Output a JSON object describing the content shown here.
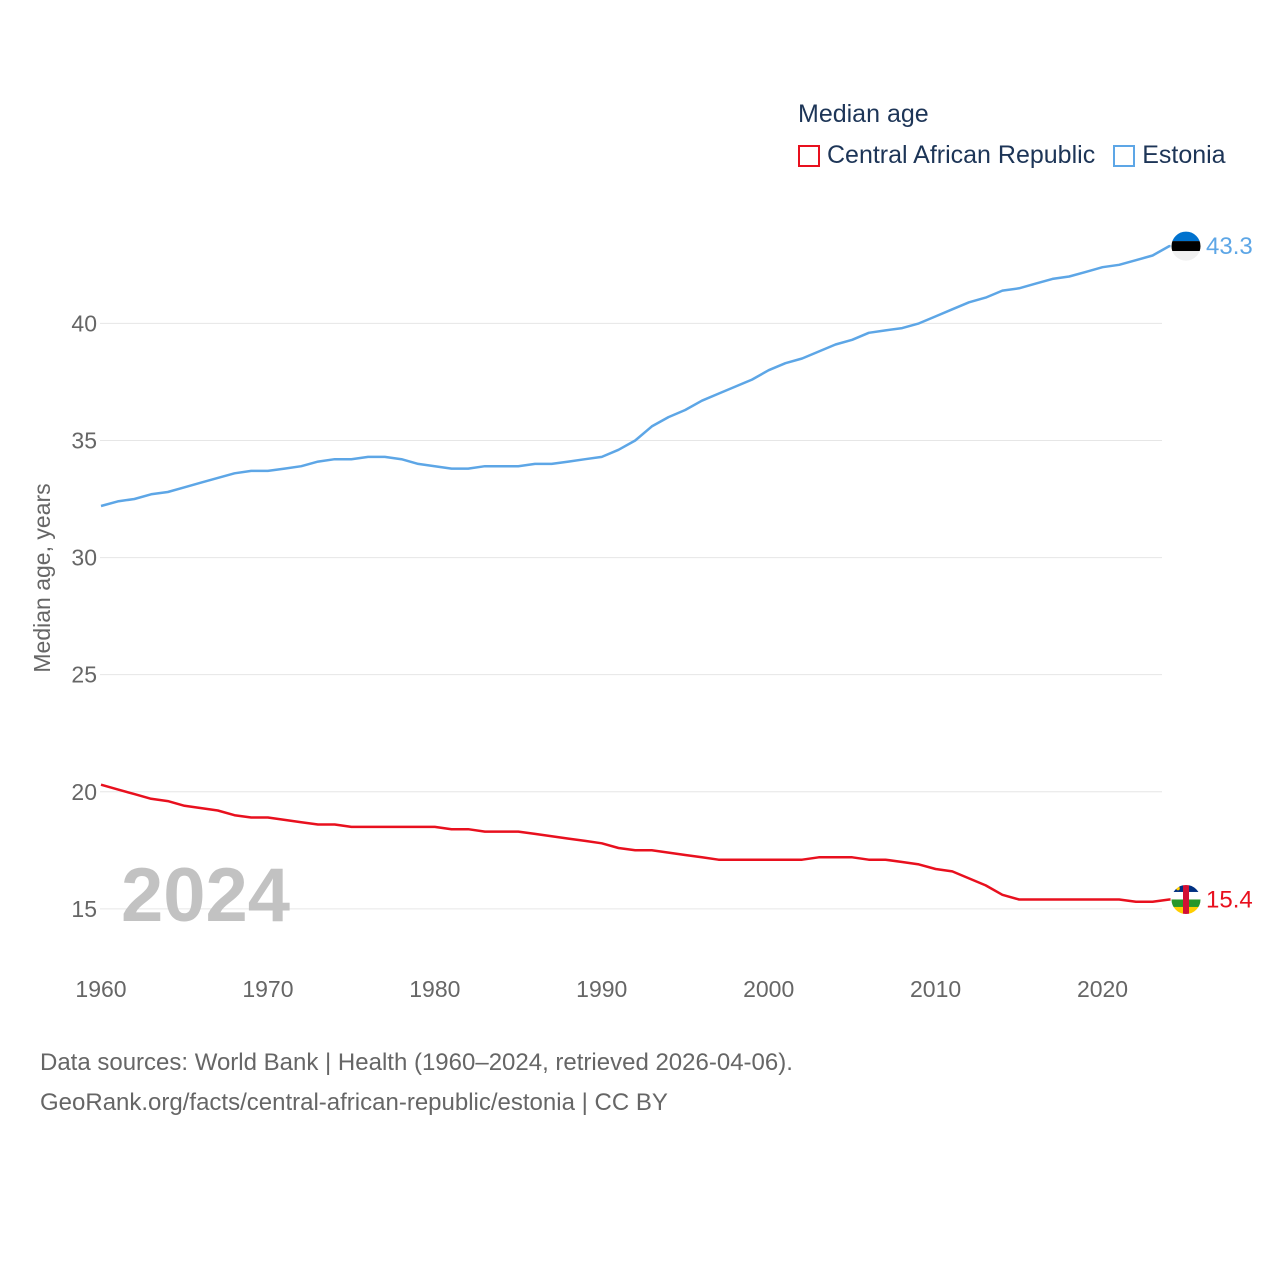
{
  "chart_data": {
    "type": "line",
    "title": "Median age",
    "xlabel": "",
    "ylabel": "Median age, years",
    "xlim": [
      1960,
      2025
    ],
    "ylim": [
      13.2,
      44.5
    ],
    "x_ticks": [
      1960,
      1970,
      1980,
      1990,
      2000,
      2010,
      2020
    ],
    "y_ticks": [
      15,
      20,
      25,
      30,
      35,
      40
    ],
    "grid": true,
    "legend_position": "top-right",
    "current_year_label": "2024",
    "x": [
      1960,
      1961,
      1962,
      1963,
      1964,
      1965,
      1966,
      1967,
      1968,
      1969,
      1970,
      1971,
      1972,
      1973,
      1974,
      1975,
      1976,
      1977,
      1978,
      1979,
      1980,
      1981,
      1982,
      1983,
      1984,
      1985,
      1986,
      1987,
      1988,
      1989,
      1990,
      1991,
      1992,
      1993,
      1994,
      1995,
      1996,
      1997,
      1998,
      1999,
      2000,
      2001,
      2002,
      2003,
      2004,
      2005,
      2006,
      2007,
      2008,
      2009,
      2010,
      2011,
      2012,
      2013,
      2014,
      2015,
      2016,
      2017,
      2018,
      2019,
      2020,
      2021,
      2022,
      2023,
      2024
    ],
    "series": [
      {
        "name": "Central African Republic",
        "color": "#e8101e",
        "end_label": "15.4",
        "flag": "central-african-republic-flag-icon",
        "values": [
          20.3,
          20.1,
          19.9,
          19.7,
          19.6,
          19.4,
          19.3,
          19.2,
          19.0,
          18.9,
          18.9,
          18.8,
          18.7,
          18.6,
          18.6,
          18.5,
          18.5,
          18.5,
          18.5,
          18.5,
          18.5,
          18.4,
          18.4,
          18.3,
          18.3,
          18.3,
          18.2,
          18.1,
          18.0,
          17.9,
          17.8,
          17.6,
          17.5,
          17.5,
          17.4,
          17.3,
          17.2,
          17.1,
          17.1,
          17.1,
          17.1,
          17.1,
          17.1,
          17.2,
          17.2,
          17.2,
          17.1,
          17.1,
          17.0,
          16.9,
          16.7,
          16.6,
          16.3,
          16.0,
          15.6,
          15.4,
          15.4,
          15.4,
          15.4,
          15.4,
          15.4,
          15.4,
          15.3,
          15.3,
          15.4
        ]
      },
      {
        "name": "Estonia",
        "color": "#5da6e6",
        "end_label": "43.3",
        "flag": "estonia-flag-icon",
        "values": [
          32.2,
          32.4,
          32.5,
          32.7,
          32.8,
          33.0,
          33.2,
          33.4,
          33.6,
          33.7,
          33.7,
          33.8,
          33.9,
          34.1,
          34.2,
          34.2,
          34.3,
          34.3,
          34.2,
          34.0,
          33.9,
          33.8,
          33.8,
          33.9,
          33.9,
          33.9,
          34.0,
          34.0,
          34.1,
          34.2,
          34.3,
          34.6,
          35.0,
          35.6,
          36.0,
          36.3,
          36.7,
          37.0,
          37.3,
          37.6,
          38.0,
          38.3,
          38.5,
          38.8,
          39.1,
          39.3,
          39.6,
          39.7,
          39.8,
          40.0,
          40.3,
          40.6,
          40.9,
          41.1,
          41.4,
          41.5,
          41.7,
          41.9,
          42.0,
          42.2,
          42.4,
          42.5,
          42.7,
          42.9,
          43.3
        ]
      }
    ]
  },
  "footer": {
    "source_line": "Data sources: World Bank | Health (1960–2024, retrieved 2026-04-06).",
    "attribution_line": "GeoRank.org/facts/central-african-republic/estonia | CC BY"
  }
}
